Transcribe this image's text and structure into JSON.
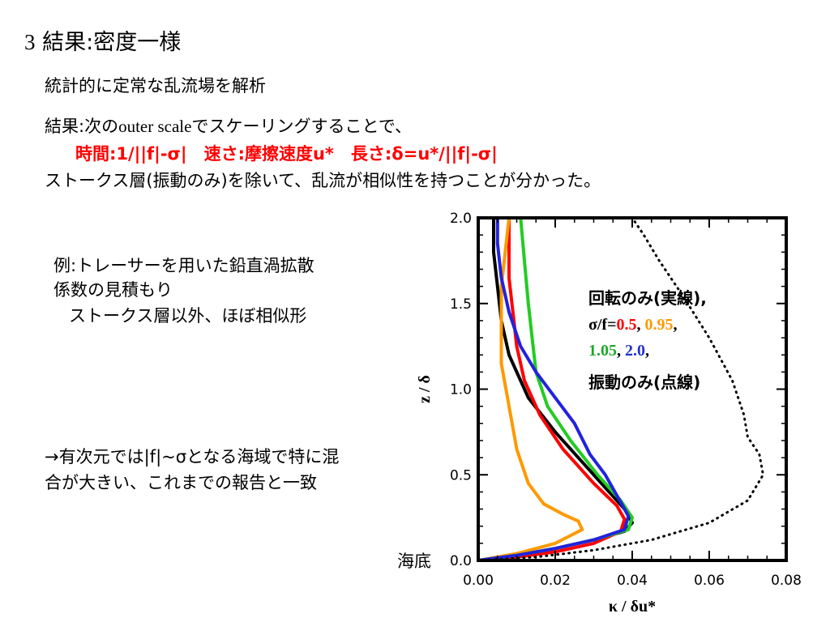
{
  "slide": {
    "title_number": "3",
    "title_text": "結果:密度一様",
    "line1": "統計的に定常な乱流場を解析",
    "line2_a": "結果:次の",
    "line2_b": "outer scale",
    "line2_c": "でスケーリングすることで、",
    "line3": "時間:1/||f|-σ|　速さ:摩擦速度u*　長さ:δ=u*/||f|-σ|",
    "line4": "ストークス層(振動のみ)を除いて、乱流が相似性を持つことが分かった。",
    "example1": "例:トレーサーを用いた鉛直渦拡散",
    "example2": "係数の見積もり",
    "example3": "ストークス層以外、ほぼ相似形",
    "conclusion1": "→有次元では|f|~σとなる海域で特に混",
    "conclusion2": "合が大きい、これまでの報告と一致",
    "seabed_label": "海底"
  },
  "legend": {
    "line1": "回転のみ(実線),",
    "prefix": "σ/f=",
    "v1": "0.5",
    "sep": ", ",
    "v2": "0.95",
    "comma": ",",
    "v3": "1.05",
    "v4": "2.0",
    "line4": "振動のみ(点線)"
  },
  "chart_data": {
    "type": "line",
    "xlabel": "κ / δu*",
    "ylabel": "z / δ",
    "xlim": [
      0.0,
      0.08
    ],
    "ylim": [
      0.0,
      2.0
    ],
    "xticks": [
      "0.00",
      "0.02",
      "0.04",
      "0.06",
      "0.08"
    ],
    "yticks": [
      "0.0",
      "0.5",
      "1.0",
      "1.5",
      "2.0"
    ],
    "series": [
      {
        "color": "#000000",
        "style": "solid",
        "x": [
          0.0,
          0.01,
          0.02,
          0.03,
          0.038,
          0.04,
          0.038,
          0.034,
          0.028,
          0.02,
          0.013,
          0.008,
          0.006,
          0.005,
          0.004,
          0.004
        ],
        "y": [
          0.0,
          0.03,
          0.07,
          0.12,
          0.17,
          0.22,
          0.3,
          0.4,
          0.55,
          0.75,
          0.95,
          1.2,
          1.4,
          1.6,
          1.8,
          2.0
        ]
      },
      {
        "color": "#ff0000",
        "style": "solid",
        "x": [
          0.0,
          0.01,
          0.02,
          0.03,
          0.037,
          0.038,
          0.036,
          0.03,
          0.022,
          0.016,
          0.012,
          0.01,
          0.009,
          0.008,
          0.008,
          0.008
        ],
        "y": [
          0.0,
          0.02,
          0.05,
          0.1,
          0.17,
          0.24,
          0.32,
          0.45,
          0.65,
          0.85,
          1.05,
          1.25,
          1.45,
          1.65,
          1.85,
          2.0
        ]
      },
      {
        "color": "#ff9900",
        "style": "solid",
        "x": [
          0.0,
          0.01,
          0.02,
          0.027,
          0.026,
          0.022,
          0.017,
          0.013,
          0.01,
          0.008,
          0.006,
          0.006,
          0.006,
          0.007,
          0.008
        ],
        "y": [
          0.0,
          0.04,
          0.1,
          0.18,
          0.23,
          0.27,
          0.33,
          0.45,
          0.65,
          0.9,
          1.15,
          1.4,
          1.6,
          1.8,
          2.0
        ]
      },
      {
        "color": "#22cc22",
        "style": "solid",
        "x": [
          0.0,
          0.01,
          0.02,
          0.03,
          0.039,
          0.04,
          0.037,
          0.031,
          0.024,
          0.018,
          0.015,
          0.014,
          0.013,
          0.012,
          0.011
        ],
        "y": [
          0.0,
          0.03,
          0.07,
          0.12,
          0.18,
          0.25,
          0.35,
          0.5,
          0.7,
          0.9,
          1.1,
          1.3,
          1.5,
          1.75,
          2.0
        ]
      },
      {
        "color": "#2222dd",
        "style": "solid",
        "x": [
          0.0,
          0.01,
          0.02,
          0.03,
          0.038,
          0.039,
          0.036,
          0.033,
          0.029,
          0.025,
          0.02,
          0.015,
          0.011,
          0.008,
          0.006,
          0.005,
          0.005
        ],
        "y": [
          0.0,
          0.03,
          0.07,
          0.12,
          0.18,
          0.26,
          0.38,
          0.5,
          0.62,
          0.8,
          0.95,
          1.1,
          1.25,
          1.45,
          1.65,
          1.85,
          2.0
        ]
      },
      {
        "color": "#000000",
        "style": "dotted",
        "x": [
          0.0,
          0.015,
          0.03,
          0.045,
          0.06,
          0.07,
          0.074,
          0.073,
          0.07,
          0.069,
          0.066,
          0.06,
          0.053,
          0.047,
          0.043,
          0.04
        ],
        "y": [
          0.0,
          0.02,
          0.06,
          0.12,
          0.22,
          0.35,
          0.5,
          0.62,
          0.72,
          0.85,
          1.05,
          1.3,
          1.55,
          1.75,
          1.9,
          2.0
        ]
      }
    ]
  }
}
